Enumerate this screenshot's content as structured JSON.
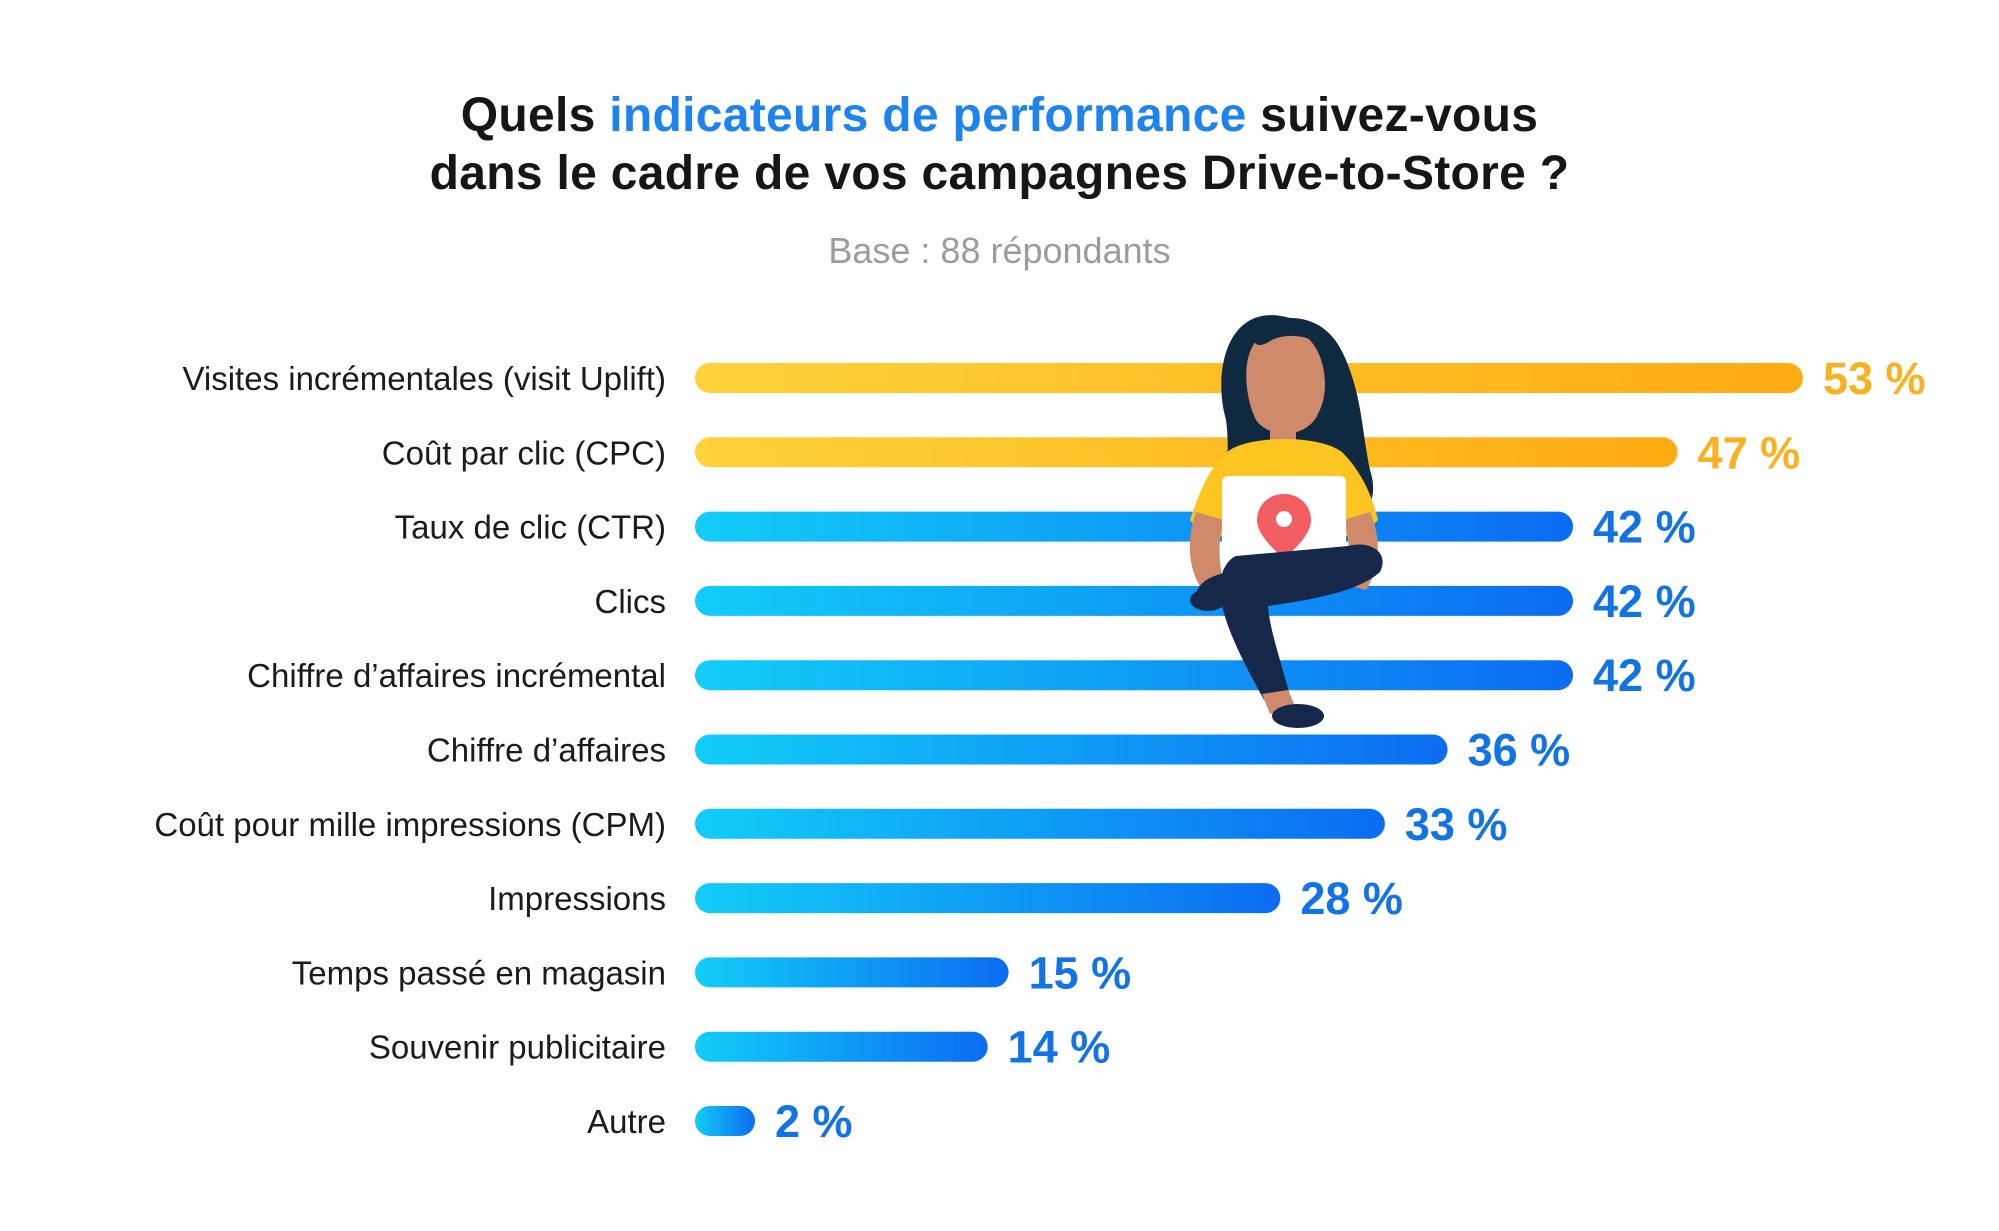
{
  "title": {
    "part1": "Quels ",
    "highlight": "indicateurs de performance",
    "part2": " suivez-vous",
    "line2": "dans le cadre de vos campagnes Drive-to-Store ?"
  },
  "subtitle": "Base : 88 répondants",
  "colors": {
    "accent": "#1d83ee",
    "gold_start": "#ffd23a",
    "gold_end": "#ffab12",
    "gold_text": "#f8b21f",
    "blue_start": "#12cdf7",
    "blue_end": "#0b6cf2",
    "blue_text": "#1173e6",
    "hair": "#0f2940",
    "skin": "#cf8a6c",
    "shirt": "#fcc521",
    "pants": "#15284a",
    "pin": "#f25d62"
  },
  "illustration": {
    "icon": "woman-with-laptop-icon",
    "laptop_icon": "location-pin-icon"
  },
  "chart_data": {
    "type": "bar",
    "orientation": "horizontal",
    "categories": [
      "Visites incrémentales (visit Uplift)",
      "Coût par clic (CPC)",
      "Taux de clic (CTR)",
      "Clics",
      "Chiffre d’affaires incrémental",
      "Chiffre d’affaires",
      "Coût pour mille impressions (CPM)",
      "Impressions",
      "Temps passé en magasin",
      "Souvenir publicitaire",
      "Autre"
    ],
    "values": [
      53,
      47,
      42,
      42,
      42,
      36,
      33,
      28,
      15,
      14,
      2
    ],
    "value_labels": [
      "53 %",
      "47 %",
      "42 %",
      "42 %",
      "42 %",
      "36 %",
      "33 %",
      "28 %",
      "15 %",
      "14 %",
      "2 %"
    ],
    "highlight_count": 2,
    "unit": "%",
    "xlim": [
      0,
      53
    ],
    "grid": false,
    "legend": "none"
  }
}
